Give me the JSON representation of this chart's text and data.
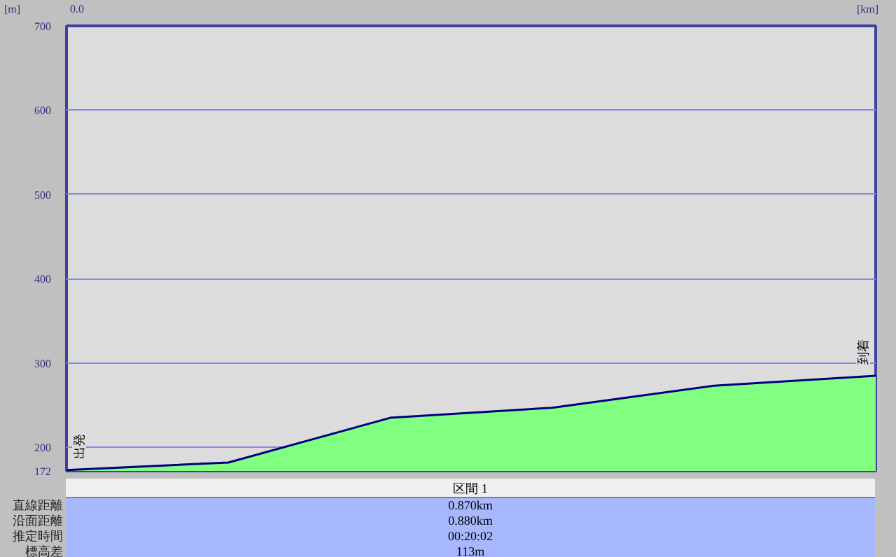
{
  "chart_data": {
    "type": "area",
    "categories": [
      null,
      null,
      null,
      null,
      null,
      null
    ],
    "series": [
      {
        "color": "#80ff80",
        "values": [
          173,
          182,
          235,
          247,
          273,
          285
        ]
      }
    ],
    "ylabel": "[m]",
    "xlabel": "[km]",
    "ylim": [
      172,
      700
    ],
    "yticks": [
      172,
      200,
      300,
      400,
      500,
      600,
      700
    ],
    "grid": "y",
    "line_style": "solid",
    "annotations": [
      "0.0",
      {
        "text": "出発",
        "y": 173
      },
      {
        "text": "到着",
        "y": 285
      },
      "区間 1",
      "直線距離",
      "沿面距離",
      "推定時間",
      "標高差",
      "0.870km",
      "0.880km",
      "00:20:02",
      "113m"
    ]
  }
}
